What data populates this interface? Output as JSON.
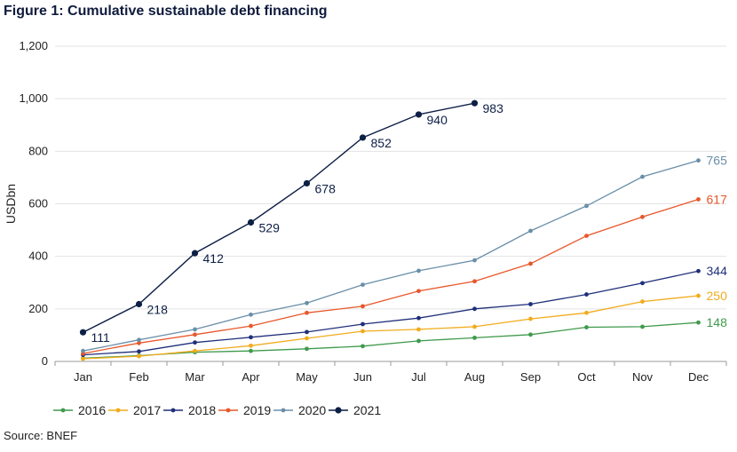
{
  "figure": {
    "title": "Figure 1: Cumulative sustainable debt financing",
    "source": "Source: BNEF"
  },
  "chart_data": {
    "type": "line",
    "title": "Figure 1: Cumulative sustainable debt financing",
    "xlabel": "",
    "ylabel": "USDbn",
    "ylim": [
      0,
      1200
    ],
    "yticks": [
      0,
      200,
      400,
      600,
      800,
      1000,
      1200
    ],
    "ytick_labels": [
      "0",
      "200",
      "400",
      "600",
      "800",
      "1,000",
      "1,200"
    ],
    "grid": true,
    "legend_position": "bottom",
    "categories": [
      "Jan",
      "Feb",
      "Mar",
      "Apr",
      "May",
      "Jun",
      "Jul",
      "Aug",
      "Sep",
      "Oct",
      "Nov",
      "Dec"
    ],
    "series": [
      {
        "name": "2016",
        "color": "#3f9a4c",
        "values": [
          12,
          22,
          35,
          40,
          48,
          58,
          78,
          90,
          102,
          130,
          132,
          148
        ],
        "end_label": "148"
      },
      {
        "name": "2017",
        "color": "#f2ab1c",
        "values": [
          10,
          20,
          40,
          60,
          88,
          115,
          122,
          132,
          162,
          185,
          228,
          250
        ],
        "end_label": "250"
      },
      {
        "name": "2018",
        "color": "#1f2f7a",
        "values": [
          25,
          38,
          72,
          92,
          112,
          142,
          165,
          200,
          218,
          255,
          298,
          344
        ],
        "end_label": "344"
      },
      {
        "name": "2019",
        "color": "#e8572a",
        "values": [
          30,
          70,
          102,
          135,
          185,
          210,
          268,
          305,
          372,
          478,
          550,
          617
        ],
        "end_label": "617"
      },
      {
        "name": "2020",
        "color": "#6a8fa8",
        "values": [
          40,
          82,
          122,
          178,
          222,
          292,
          345,
          385,
          497,
          592,
          703,
          765
        ],
        "end_label": "765"
      },
      {
        "name": "2021",
        "color": "#0d1f45",
        "values": [
          111,
          218,
          412,
          529,
          678,
          852,
          940,
          983,
          null,
          null,
          null,
          null
        ],
        "point_labels": [
          "111",
          "218",
          "412",
          "529",
          "678",
          "852",
          "940",
          "983"
        ]
      }
    ]
  }
}
